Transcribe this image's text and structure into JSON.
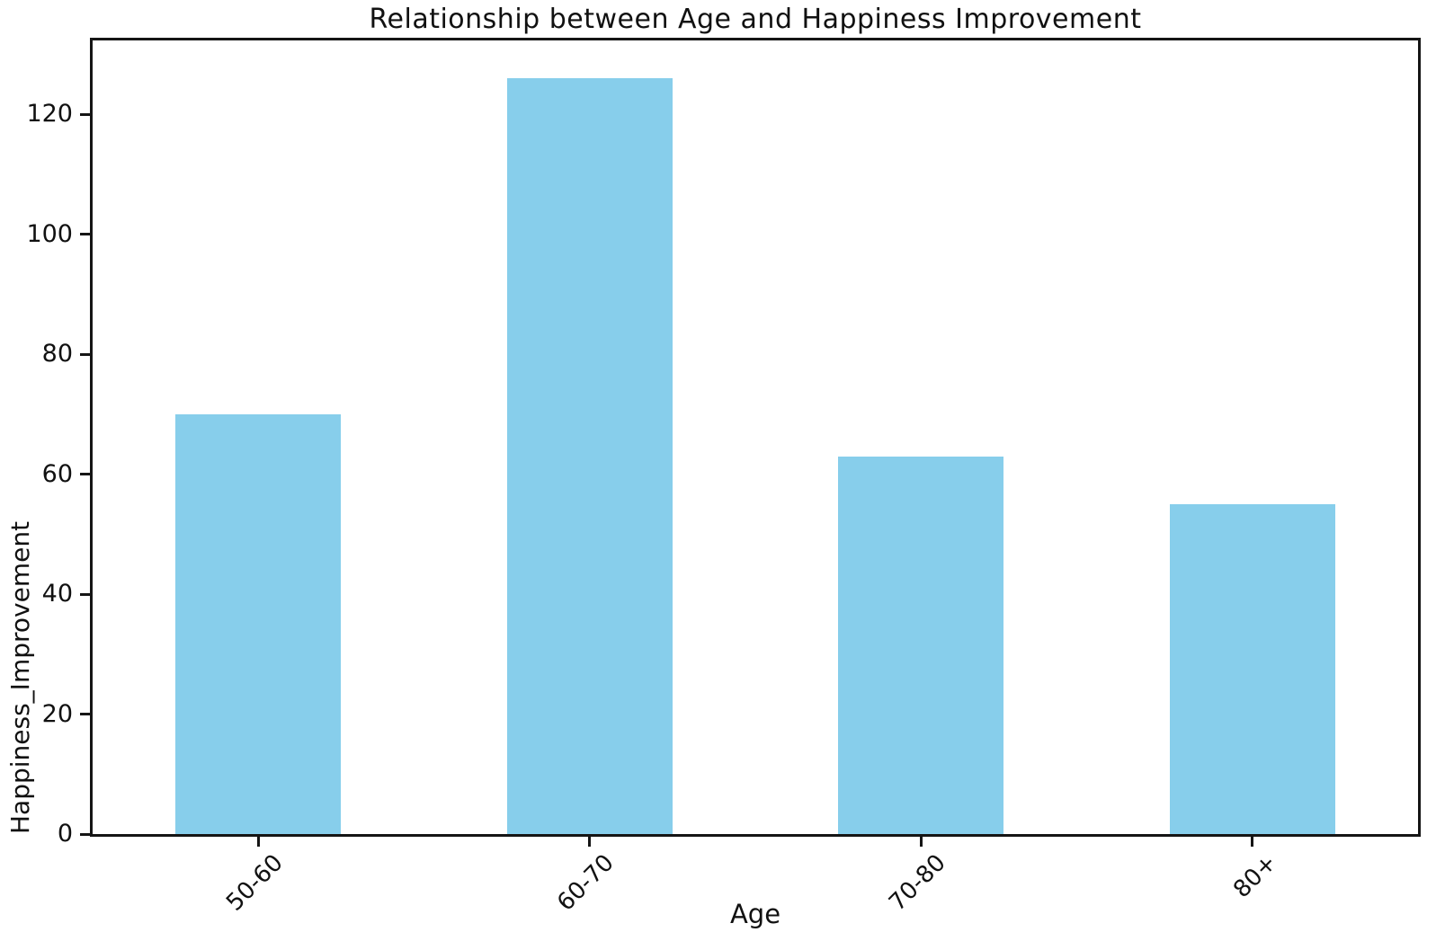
{
  "chart_data": {
    "type": "bar",
    "title": "Relationship between Age and Happiness Improvement",
    "xlabel": "Age",
    "ylabel": "Happiness_Improvement",
    "categories": [
      "50-60",
      "60-70",
      "70-80",
      "80+"
    ],
    "values": [
      70,
      126,
      63,
      55
    ],
    "yticks": [
      0,
      20,
      40,
      60,
      80,
      100,
      120
    ],
    "ylim": [
      0,
      132.3
    ],
    "bar_color": "#87CEEB",
    "spine_color": "#151515",
    "x_tick_rotation_deg": 45,
    "bar_width_fraction": 0.5,
    "grid": "off",
    "legend": "none"
  }
}
